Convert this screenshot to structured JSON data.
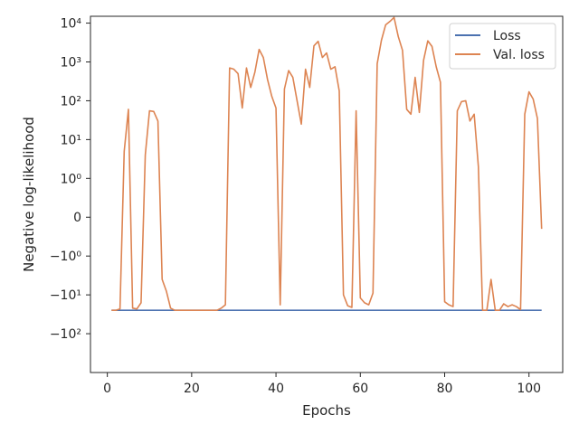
{
  "chart_data": {
    "type": "line",
    "xlabel": "Epochs",
    "ylabel": "Negative log-likelihood",
    "y_scale": "symlog",
    "y_linthresh": 1,
    "xlim": [
      -4,
      108
    ],
    "ylim": [
      -1000,
      15000
    ],
    "x_ticks": [
      0,
      20,
      40,
      60,
      80,
      100
    ],
    "x_tick_labels": [
      "0",
      "20",
      "40",
      "60",
      "80",
      "100"
    ],
    "y_ticks": [
      -100,
      -10,
      -1,
      0,
      1,
      10,
      100,
      1000,
      10000
    ],
    "y_tick_labels": [
      "−10²",
      "−10¹",
      "−10⁰",
      "0",
      "10⁰",
      "10¹",
      "10²",
      "10³",
      "10⁴"
    ],
    "grid": false,
    "legend_position": "top-right",
    "series": [
      {
        "name": "Loss",
        "color": "#4c72b0",
        "x": [
          1,
          103
        ],
        "y": [
          -25,
          -25
        ]
      },
      {
        "name": "Val. loss",
        "color": "#dd8452",
        "x": [
          1,
          2,
          3,
          4,
          5,
          6,
          7,
          8,
          9,
          10,
          11,
          12,
          13,
          14,
          15,
          16,
          17,
          18,
          19,
          20,
          21,
          22,
          23,
          24,
          25,
          26,
          27,
          28,
          29,
          30,
          31,
          32,
          33,
          34,
          35,
          36,
          37,
          38,
          39,
          40,
          41,
          42,
          43,
          44,
          45,
          46,
          47,
          48,
          49,
          50,
          51,
          52,
          53,
          54,
          55,
          56,
          57,
          58,
          59,
          60,
          61,
          62,
          63,
          64,
          65,
          66,
          67,
          68,
          69,
          70,
          71,
          72,
          73,
          74,
          75,
          76,
          77,
          78,
          79,
          80,
          81,
          82,
          83,
          84,
          85,
          86,
          87,
          88,
          89,
          90,
          91,
          92,
          93,
          94,
          95,
          96,
          97,
          98,
          99,
          100,
          101,
          102,
          103
        ],
        "y": [
          -25,
          -25,
          -23,
          5,
          60,
          -22,
          -23,
          -16,
          4,
          55,
          53,
          30,
          -4,
          -8,
          -22,
          -25,
          -25,
          -25,
          -25,
          -25,
          -25,
          -25,
          -25,
          -25,
          -25,
          -25,
          -22,
          -18,
          700,
          650,
          500,
          65,
          700,
          220,
          550,
          2100,
          1300,
          350,
          130,
          65,
          -18,
          200,
          600,
          400,
          100,
          25,
          650,
          220,
          2600,
          3400,
          1300,
          1700,
          650,
          750,
          180,
          -10,
          -19,
          -21,
          55,
          -12,
          -16,
          -18,
          -9,
          900,
          3600,
          9000,
          11000,
          14000,
          4500,
          2000,
          60,
          45,
          400,
          50,
          1100,
          3500,
          2500,
          750,
          300,
          -15,
          -18,
          -20,
          55,
          95,
          100,
          30,
          45,
          2,
          -25,
          -25,
          -4,
          -25,
          -25,
          -17,
          -20,
          -18,
          -20,
          -24,
          45,
          170,
          110,
          35,
          -0.3
        ]
      }
    ]
  }
}
